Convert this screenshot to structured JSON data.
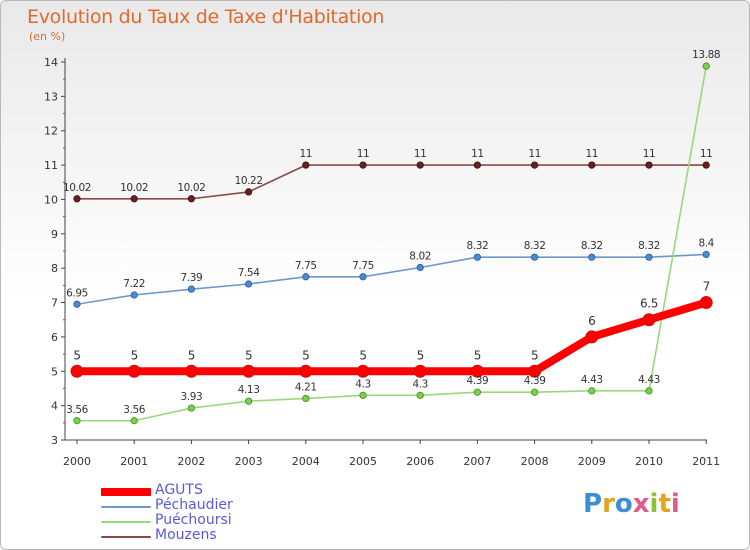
{
  "page": {
    "title": "Evolution du Taux de Taxe d'Habitation",
    "subtitle": "(en %)",
    "brand": "Proxiti"
  },
  "colors": {
    "title": "#e06a2c",
    "axis": "#444444",
    "legend_text": "#5a5ad8"
  },
  "chart_data": {
    "type": "line",
    "title": "Evolution du Taux de Taxe d'Habitation",
    "subtitle": "(en %)",
    "x": [
      "2000",
      "2001",
      "2002",
      "2003",
      "2004",
      "2005",
      "2006",
      "2007",
      "2008",
      "2009",
      "2010",
      "2011"
    ],
    "ylim": [
      3,
      14
    ],
    "yticks": [
      3,
      4,
      5,
      6,
      7,
      8,
      9,
      10,
      11,
      12,
      13,
      14
    ],
    "grid": false,
    "legend_position": "bottom-left",
    "series": [
      {
        "name": "AGUTS",
        "values": [
          5,
          5,
          5,
          5,
          5,
          5,
          5,
          5,
          5,
          6,
          6.5,
          7
        ],
        "labels": [
          "5",
          "5",
          "5",
          "5",
          "5",
          "5",
          "5",
          "5",
          "5",
          "6",
          "6.5",
          "7"
        ],
        "color": "#ff0000",
        "marker_edge": "#c81414"
      },
      {
        "name": "Péchaudier",
        "values": [
          6.95,
          7.22,
          7.39,
          7.54,
          7.75,
          7.75,
          8.02,
          8.32,
          8.32,
          8.32,
          8.32,
          8.4
        ],
        "labels": [
          "6.95",
          "7.22",
          "7.39",
          "7.54",
          "7.75",
          "7.75",
          "8.02",
          "8.32",
          "8.32",
          "8.32",
          "8.32",
          "8.4"
        ],
        "color": "#6e98c8",
        "marker_fill": "#4a8cd0",
        "marker_edge": "#2a5c98"
      },
      {
        "name": "Puéchoursi",
        "values": [
          3.56,
          3.56,
          3.93,
          4.13,
          4.21,
          4.3,
          4.3,
          4.39,
          4.39,
          4.43,
          4.43,
          13.88
        ],
        "labels": [
          "3.56",
          "3.56",
          "3.93",
          "4.13",
          "4.21",
          "4.3",
          "4.3",
          "4.39",
          "4.39",
          "4.43",
          "4.43",
          "13.88"
        ],
        "color": "#9ad87e",
        "marker_fill": "#7ad04a",
        "marker_edge": "#3c8a1c"
      },
      {
        "name": "Mouzens",
        "values": [
          10.02,
          10.02,
          10.02,
          10.22,
          11,
          11,
          11,
          11,
          11,
          11,
          11,
          11
        ],
        "labels": [
          "10.02",
          "10.02",
          "10.02",
          "10.22",
          "11",
          "11",
          "11",
          "11",
          "11",
          "11",
          "11",
          "11"
        ],
        "color": "#8a4848",
        "marker_fill": "#6a2020",
        "marker_edge": "#3a0c0c"
      }
    ]
  }
}
